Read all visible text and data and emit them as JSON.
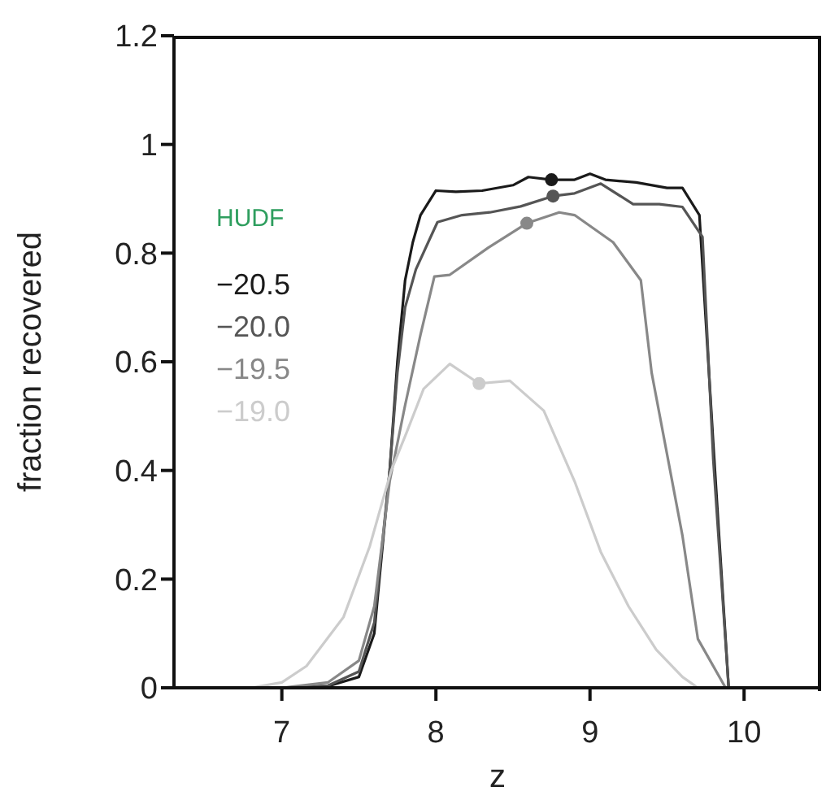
{
  "chart_data": {
    "type": "line",
    "xlabel": "z",
    "ylabel": "fraction recovered",
    "legend_title": "HUDF",
    "legend": "top left",
    "grid": false,
    "line_style": "solid",
    "xlim": [
      6.3,
      10.5
    ],
    "xticks": [
      7,
      8,
      9,
      10
    ],
    "ylim": [
      0,
      1.2
    ],
    "yticks": [
      0,
      0.2,
      0.4,
      0.6,
      0.8,
      1,
      1.2
    ],
    "series": [
      {
        "name": "−20.5",
        "marker": "none",
        "color": "#1a1a1a",
        "x": [
          6.3,
          7.0,
          7.3,
          7.5,
          7.6,
          7.7,
          7.75,
          7.8,
          7.85,
          7.9,
          8.0,
          8.13,
          8.3,
          8.5,
          8.6,
          8.75,
          8.9,
          9.0,
          9.1,
          9.3,
          9.5,
          9.6,
          9.71,
          9.8,
          9.9,
          10.5
        ],
        "values": [
          0,
          0,
          0.003,
          0.02,
          0.1,
          0.4,
          0.6,
          0.75,
          0.82,
          0.87,
          0.915,
          0.913,
          0.915,
          0.925,
          0.94,
          0.935,
          0.935,
          0.946,
          0.935,
          0.93,
          0.92,
          0.92,
          0.87,
          0.45,
          0,
          0
        ]
      },
      {
        "name": "−20.0",
        "marker": "none",
        "color": "#555555",
        "x": [
          6.3,
          7.0,
          7.3,
          7.5,
          7.6,
          7.7,
          7.75,
          7.8,
          7.87,
          7.95,
          8.01,
          8.17,
          8.35,
          8.55,
          8.76,
          8.9,
          9.07,
          9.28,
          9.45,
          9.6,
          9.73,
          9.8,
          9.9,
          10.5
        ],
        "values": [
          0,
          0,
          0.004,
          0.03,
          0.12,
          0.4,
          0.58,
          0.7,
          0.77,
          0.82,
          0.857,
          0.87,
          0.875,
          0.886,
          0.905,
          0.91,
          0.928,
          0.89,
          0.89,
          0.885,
          0.83,
          0.42,
          0,
          0
        ]
      },
      {
        "name": "−19.5",
        "marker": "none",
        "color": "#888888",
        "x": [
          6.3,
          7.0,
          7.3,
          7.5,
          7.6,
          7.7,
          7.8,
          7.9,
          7.99,
          8.09,
          8.34,
          8.59,
          8.8,
          8.9,
          9.15,
          9.33,
          9.4,
          9.6,
          9.7,
          9.88,
          10.5
        ],
        "values": [
          0,
          0,
          0.01,
          0.05,
          0.15,
          0.38,
          0.52,
          0.65,
          0.757,
          0.76,
          0.81,
          0.855,
          0.875,
          0.87,
          0.82,
          0.75,
          0.58,
          0.28,
          0.09,
          0,
          0
        ]
      },
      {
        "name": "−19.0",
        "marker": "none",
        "color": "#cccccc",
        "x": [
          6.3,
          6.8,
          7.0,
          7.16,
          7.4,
          7.57,
          7.71,
          7.81,
          7.92,
          8.09,
          8.28,
          8.48,
          8.7,
          8.9,
          9.07,
          9.25,
          9.43,
          9.6,
          9.7,
          10.5
        ],
        "values": [
          0,
          0,
          0.01,
          0.04,
          0.13,
          0.26,
          0.4,
          0.47,
          0.55,
          0.596,
          0.56,
          0.565,
          0.51,
          0.38,
          0.25,
          0.15,
          0.07,
          0.02,
          0,
          0
        ]
      },
      {
        "type": "scatter",
        "marker": "circle",
        "x": [
          8.75,
          8.76,
          8.59,
          8.28
        ],
        "values": [
          0.935,
          0.905,
          0.855,
          0.56
        ],
        "colors": [
          "#1a1a1a",
          "#555555",
          "#888888",
          "#cccccc"
        ]
      }
    ]
  }
}
